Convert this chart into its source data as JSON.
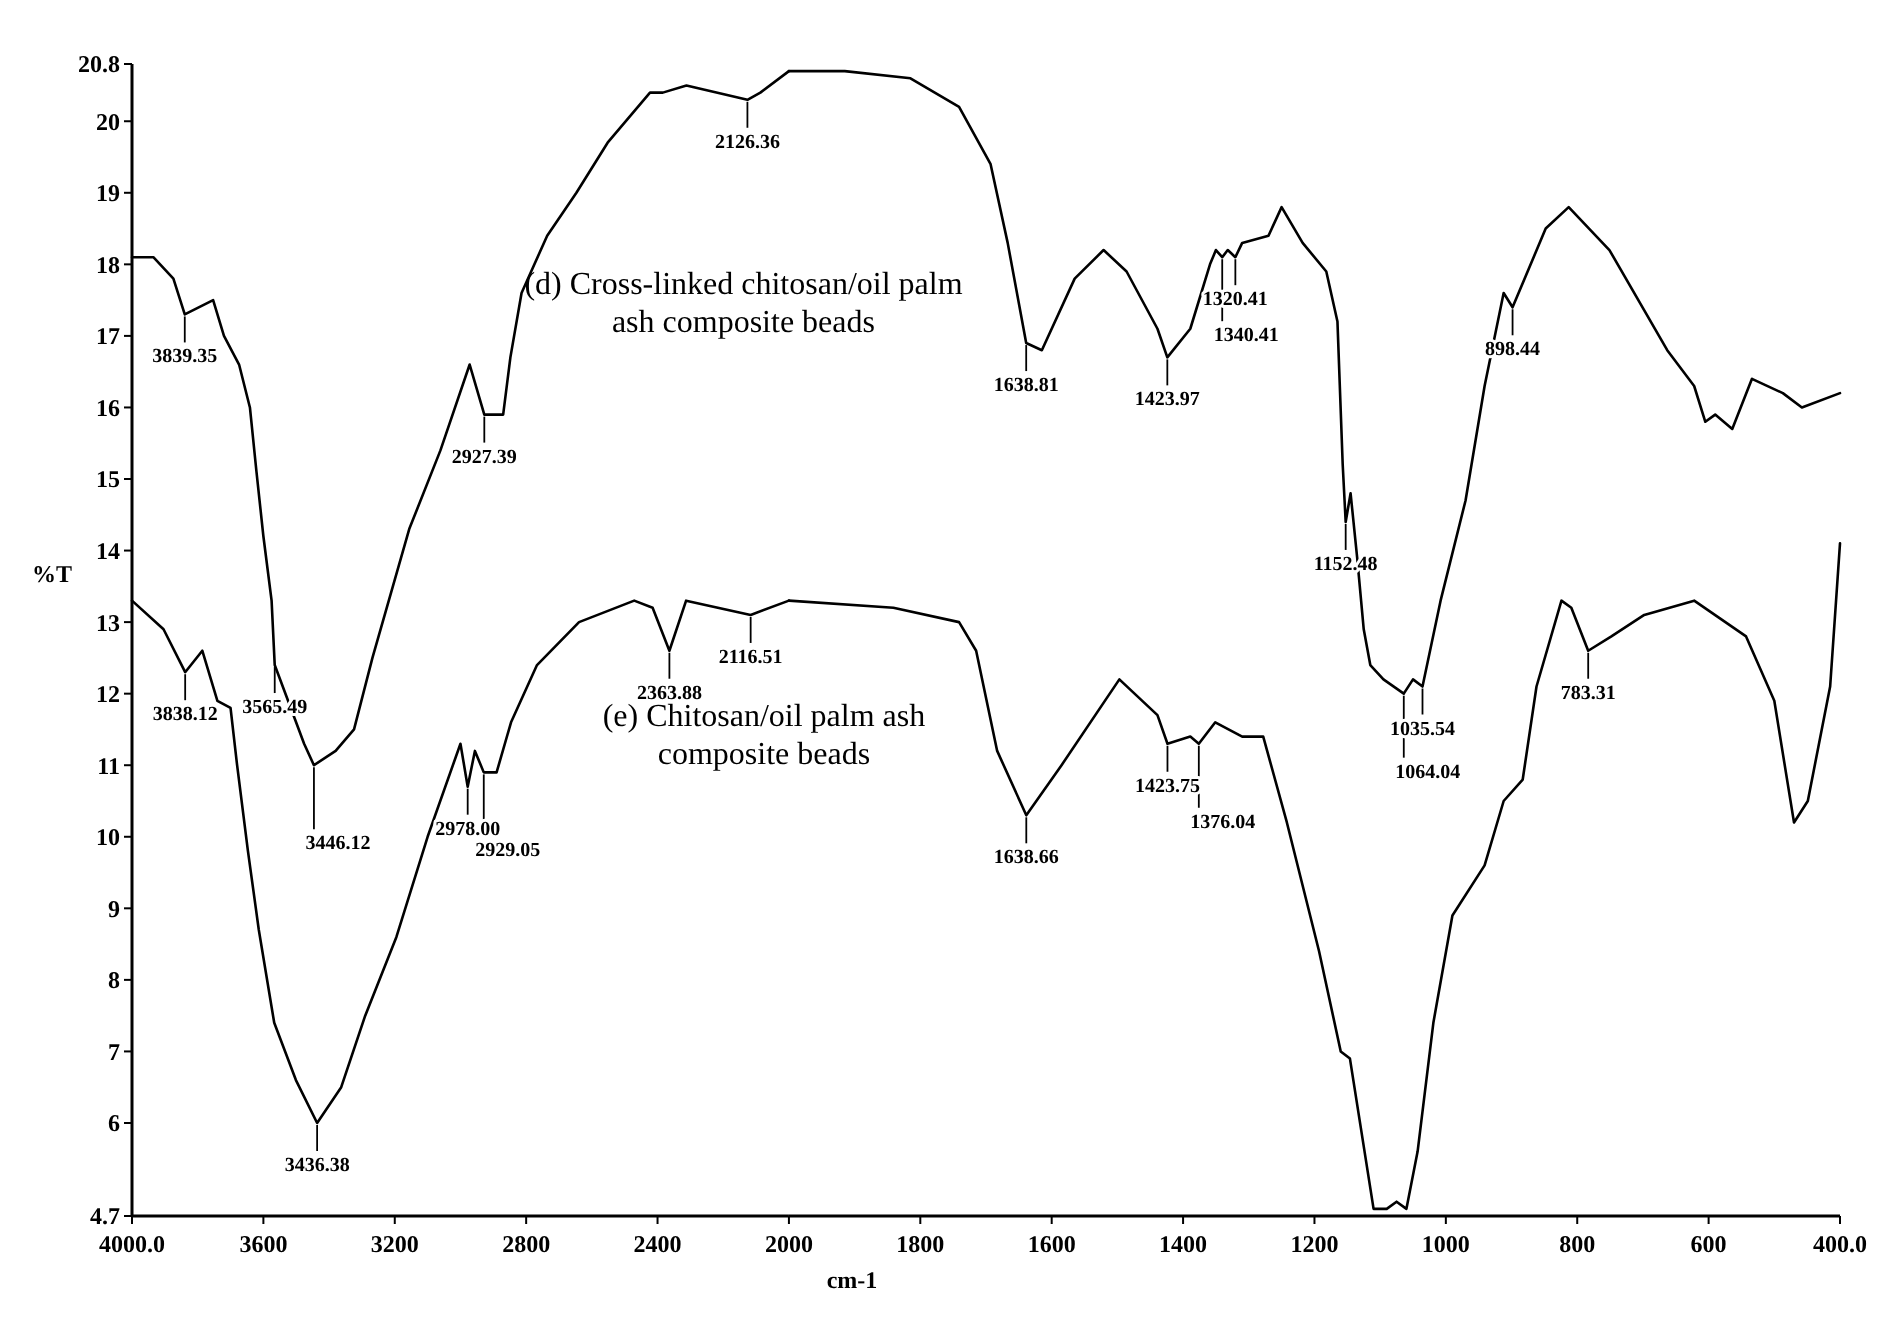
{
  "chart_data": [
    {
      "type": "line",
      "ylabel": "%T",
      "xlim": [
        4000,
        2000
      ],
      "xticks": [
        {
          "value": 4000,
          "label": "4000.0"
        },
        3600,
        3200,
        2800,
        2400,
        2000
      ],
      "ylim": [
        4.7,
        20.8
      ],
      "yticks": [
        4.7,
        6,
        7,
        8,
        9,
        10,
        11,
        12,
        13,
        14,
        15,
        16,
        17,
        18,
        19,
        20,
        20.8
      ],
      "grid": false,
      "marker": "none",
      "line_style": "solid",
      "series": [
        {
          "name": "(d) Cross-linked chitosan/oil palm ash composite beads",
          "color": "#000000",
          "x": [
            4000,
            3935,
            3874,
            3839.35,
            3753,
            3720,
            3674,
            3641,
            3621,
            3600,
            3575,
            3565.49,
            3476,
            3446.12,
            3380,
            3324,
            3268,
            3156,
            3061,
            2972,
            2927.39,
            2898,
            2870,
            2848,
            2814,
            2736,
            2647,
            2552,
            2423,
            2384,
            2312,
            2126.36,
            2087,
            2000
          ],
          "values": [
            18.1,
            18.1,
            17.8,
            17.3,
            17.5,
            17.0,
            16.6,
            16.0,
            15.1,
            14.2,
            13.3,
            12.4,
            11.3,
            11.0,
            11.2,
            11.5,
            12.5,
            14.3,
            15.4,
            16.6,
            15.9,
            15.9,
            15.9,
            16.7,
            17.6,
            18.4,
            19.0,
            19.7,
            20.4,
            20.4,
            20.5,
            20.3,
            20.4,
            20.7
          ]
        },
        {
          "name": "(e) Chitosan/oil palm ash composite beads",
          "color": "#000000",
          "x": [
            4000,
            3904,
            3838.12,
            3786,
            3740,
            3700,
            3680,
            3647,
            3614,
            3567,
            3501,
            3436.38,
            3363,
            3290,
            3195,
            3100,
            3000,
            2978.0,
            2956,
            2929.05,
            2890,
            2846,
            2767,
            2639,
            2471,
            2415,
            2363.88,
            2313,
            2116.51,
            2000
          ],
          "values": [
            13.3,
            12.9,
            12.3,
            12.6,
            11.9,
            11.8,
            11.0,
            9.8,
            8.7,
            7.4,
            6.6,
            6.0,
            6.5,
            7.5,
            8.6,
            10.0,
            11.3,
            10.7,
            11.2,
            10.9,
            10.9,
            11.6,
            12.4,
            13.0,
            13.3,
            13.2,
            12.6,
            13.3,
            13.1,
            13.3
          ]
        }
      ],
      "annotations": [
        {
          "text": "3839.35",
          "x": 3839.35,
          "y": 17.3
        },
        {
          "text": "2927.39",
          "x": 2927.39,
          "y": 15.9
        },
        {
          "text": "2126.36",
          "x": 2126.36,
          "y": 20.3
        },
        {
          "text": "3838.12",
          "x": 3838.12,
          "y": 12.3
        },
        {
          "text": "3565.49",
          "x": 3565.49,
          "y": 12.4
        },
        {
          "text": "3446.12",
          "x": 3446.12,
          "y": 11.0
        },
        {
          "text": "3436.38",
          "x": 3436.38,
          "y": 6.0
        },
        {
          "text": "2978.00",
          "x": 2978.0,
          "y": 10.7
        },
        {
          "text": "2929.05",
          "x": 2929.05,
          "y": 10.9
        },
        {
          "text": "2363.88",
          "x": 2363.88,
          "y": 12.6
        },
        {
          "text": "2116.51",
          "x": 2116.51,
          "y": 13.1
        }
      ]
    },
    {
      "type": "line",
      "xlabel": "cm-1",
      "tick_labels": "x",
      "xlim": [
        2000,
        400
      ],
      "xticks": [
        1800,
        1600,
        1400,
        1200,
        1000,
        800,
        600,
        {
          "value": 400,
          "label": "400.0"
        }
      ],
      "ylim": [
        4.7,
        20.8
      ],
      "grid": false,
      "marker": "none",
      "line_style": "solid",
      "series": [
        {
          "color": "#000000",
          "x": [
            2000,
            1915,
            1815,
            1741,
            1693,
            1667,
            1638.81,
            1615,
            1565,
            1521,
            1486,
            1439,
            1423.97,
            1389,
            1359,
            1350,
            1340.41,
            1332,
            1320.41,
            1310,
            1270,
            1250,
            1218,
            1182,
            1165,
            1157,
            1152.48,
            1145,
            1135,
            1125,
            1115,
            1095,
            1064.04,
            1050,
            1035.54,
            1008,
            970,
            941,
            912,
            898.44,
            848,
            813,
            751,
            663,
            622,
            605,
            590,
            564,
            534,
            487,
            458,
            400
          ],
          "values": [
            20.7,
            20.7,
            20.6,
            20.2,
            19.4,
            18.3,
            16.9,
            16.8,
            17.8,
            18.2,
            17.9,
            17.1,
            16.7,
            17.1,
            18.0,
            18.2,
            18.1,
            18.2,
            18.1,
            18.3,
            18.4,
            18.8,
            18.3,
            17.9,
            17.2,
            15.2,
            14.4,
            14.8,
            13.9,
            12.9,
            12.4,
            12.2,
            12.0,
            12.2,
            12.1,
            13.3,
            14.7,
            16.3,
            17.6,
            17.4,
            18.5,
            18.8,
            18.2,
            16.8,
            16.3,
            15.8,
            15.9,
            15.7,
            16.4,
            16.2,
            16.0,
            16.2
          ]
        },
        {
          "color": "#000000",
          "x": [
            2000,
            1841,
            1741,
            1715,
            1683,
            1638.66,
            1585,
            1497,
            1439,
            1423.75,
            1389,
            1376.04,
            1351,
            1310,
            1278,
            1242,
            1193,
            1160,
            1146,
            1110,
            1090,
            1075,
            1060,
            1043,
            1019,
            990,
            941,
            912,
            883,
            862,
            824,
            809,
            783.31,
            748,
            698,
            622,
            543,
            500,
            470,
            449,
            415,
            400
          ],
          "values": [
            13.3,
            13.2,
            13.0,
            12.6,
            11.2,
            10.3,
            11.0,
            12.2,
            11.7,
            11.3,
            11.4,
            11.3,
            11.6,
            11.4,
            11.4,
            10.2,
            8.4,
            7.0,
            6.9,
            4.8,
            4.8,
            4.9,
            4.8,
            5.6,
            7.4,
            8.9,
            9.6,
            10.5,
            10.8,
            12.1,
            13.3,
            13.2,
            12.6,
            12.8,
            13.1,
            13.3,
            12.8,
            11.9,
            10.2,
            10.5,
            12.1,
            14.1
          ]
        }
      ],
      "annotations": [
        {
          "text": "1638.81",
          "x": 1638.81,
          "y": 16.9
        },
        {
          "text": "1423.97",
          "x": 1423.97,
          "y": 16.7
        },
        {
          "text": "1340.41",
          "x": 1340.41,
          "y": 18.1
        },
        {
          "text": "1320.41",
          "x": 1320.41,
          "y": 18.1
        },
        {
          "text": "1152.48",
          "x": 1152.48,
          "y": 14.4
        },
        {
          "text": "1064.04",
          "x": 1064.04,
          "y": 12.0
        },
        {
          "text": "1035.54",
          "x": 1035.54,
          "y": 12.1
        },
        {
          "text": "898.44",
          "x": 898.44,
          "y": 17.4
        },
        {
          "text": "1638.66",
          "x": 1638.66,
          "y": 10.3
        },
        {
          "text": "1423.75",
          "x": 1423.75,
          "y": 11.3
        },
        {
          "text": "1376.04",
          "x": 1376.04,
          "y": 11.3
        },
        {
          "text": "783.31",
          "x": 783.31,
          "y": 12.6
        }
      ]
    }
  ]
}
